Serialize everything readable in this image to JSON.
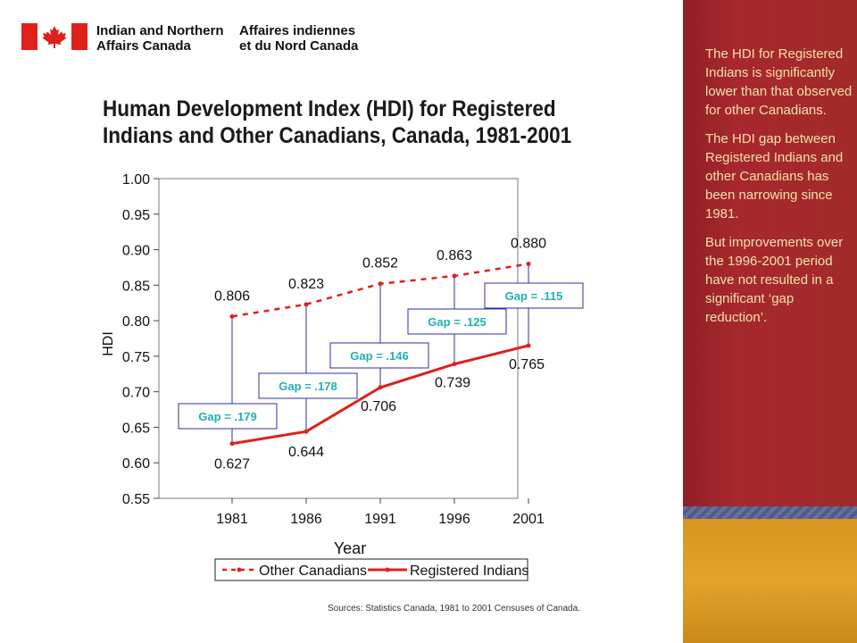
{
  "header": {
    "dept_en_line1": "Indian and Northern",
    "dept_en_line2": "Affairs Canada",
    "dept_fr_line1": "Affaires indiennes",
    "dept_fr_line2": "et du Nord Canada"
  },
  "title_line1": "Human Development Index (HDI) for Registered",
  "title_line2": "Indians and Other Canadians, Canada, 1981-2001",
  "source": "Sources:  Statistics  Canada, 1981 to 2001 Censuses of Canada.",
  "sidebar": {
    "notes": [
      "The HDI for Registered Indians is significantly lower than that observed for other Canadians.",
      "The HDI gap between Registered Indians and other Canadians has been narrowing since 1981.",
      "But improvements over the 1996-2001 period have not resulted in a significant ‘gap reduction’."
    ]
  },
  "colors": {
    "series": "#e0201b",
    "gap_line": "#2d2db0",
    "gap_text": "#22b0b0",
    "sidebar": "#a5262c",
    "notes_text": "#f2e2a6"
  },
  "chart_data": {
    "type": "line",
    "x": [
      "1981",
      "1986",
      "1991",
      "1996",
      "2001"
    ],
    "xlabel": "Year",
    "ylabel": "HDI",
    "ylim": [
      0.55,
      1.0
    ],
    "yticks": [
      "0.55",
      "0.60",
      "0.65",
      "0.70",
      "0.75",
      "0.80",
      "0.85",
      "0.90",
      "0.95",
      "1.00"
    ],
    "grid": false,
    "legend": "bottom",
    "series": [
      {
        "name": "Other Canadians",
        "style": "dashed",
        "values": [
          0.806,
          0.823,
          0.852,
          0.863,
          0.88
        ],
        "labels": [
          "0.806",
          "0.823",
          "0.852",
          "0.863",
          "0.880"
        ]
      },
      {
        "name": "Registered Indians",
        "style": "solid",
        "values": [
          0.627,
          0.644,
          0.706,
          0.739,
          0.765
        ],
        "labels": [
          "0.627",
          "0.644",
          "0.706",
          "0.739",
          "0.765"
        ]
      }
    ],
    "gaps": [
      "Gap = .179",
      "Gap = .178",
      "Gap = .146",
      "Gap = .125",
      "Gap = .115"
    ]
  }
}
